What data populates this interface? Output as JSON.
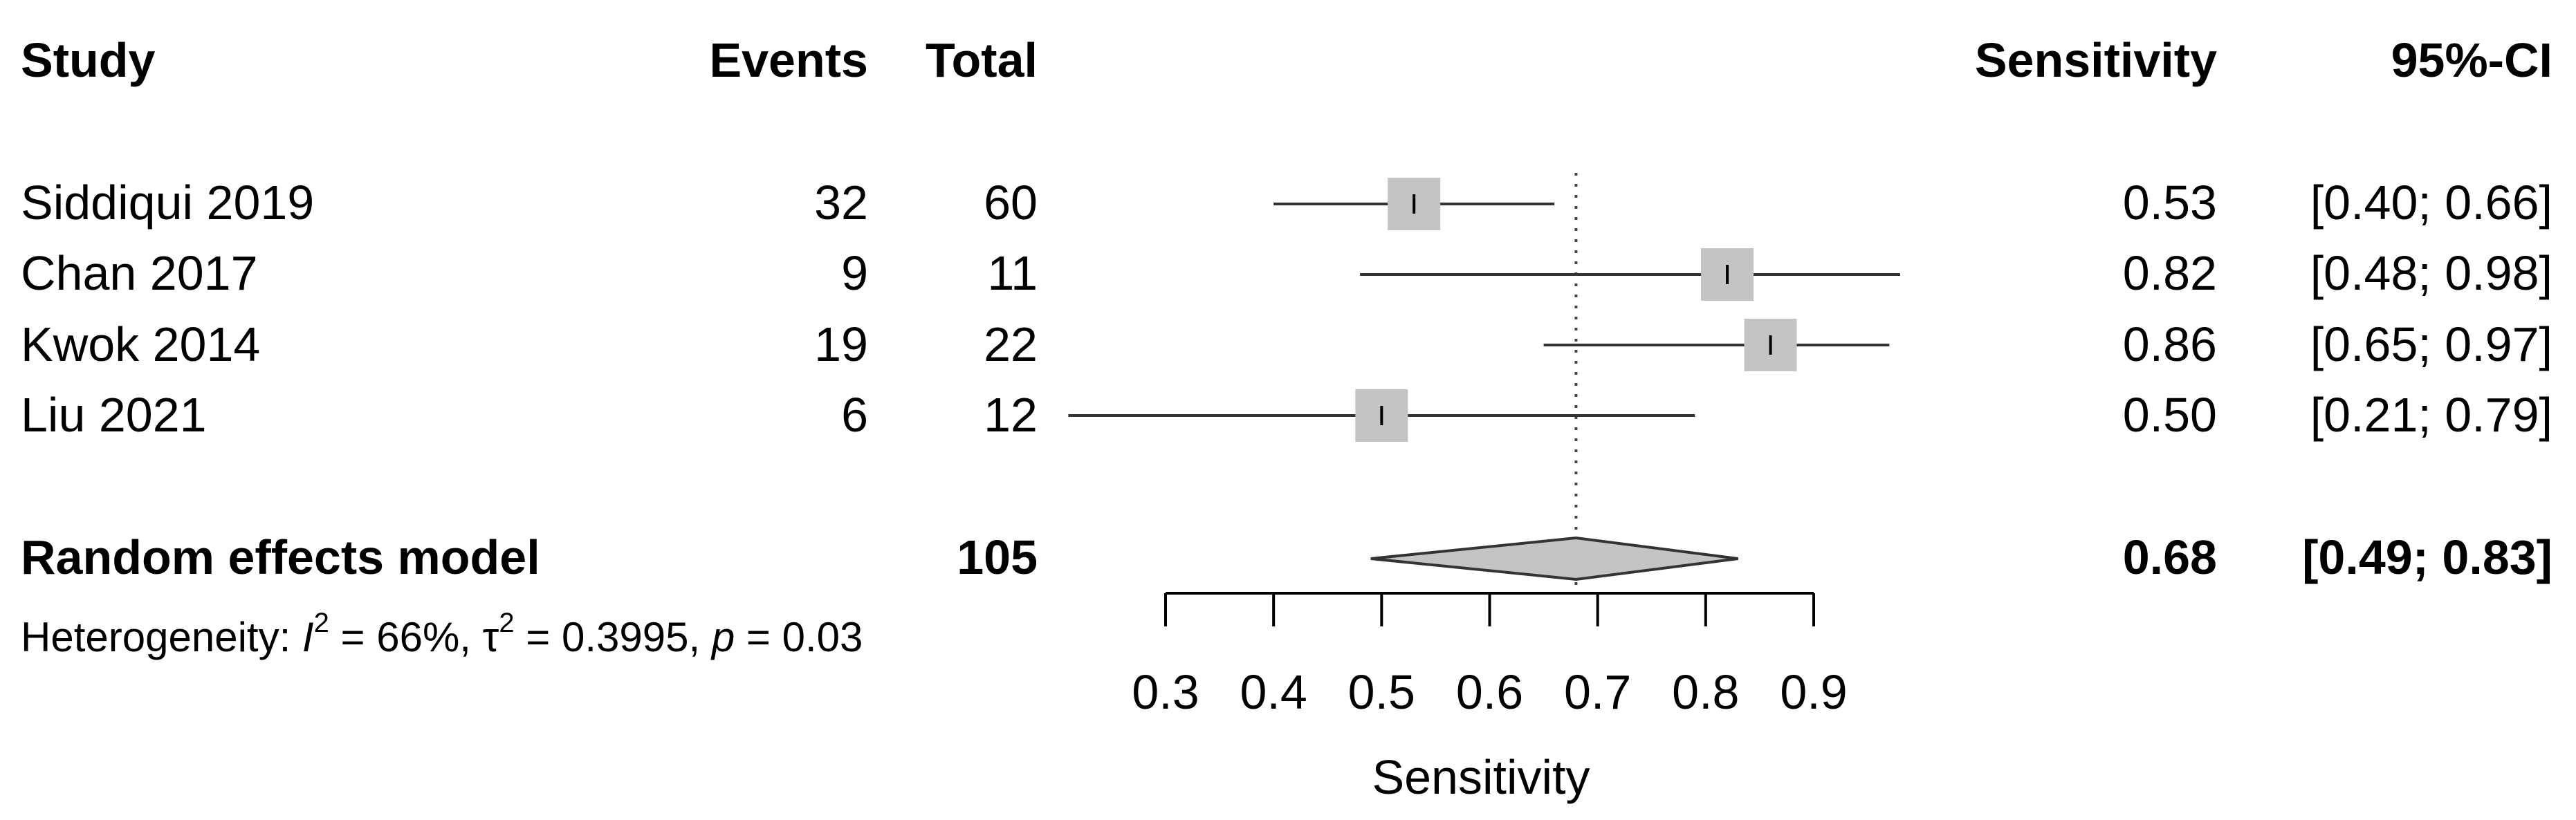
{
  "headers": {
    "study": "Study",
    "events": "Events",
    "total": "Total",
    "estimate": "Sensitivity",
    "ci": "95%-CI"
  },
  "chart_data": {
    "type": "forest",
    "xlabel": "Sensitivity",
    "xlim": [
      0.3,
      0.9
    ],
    "xticks": [
      0.3,
      0.4,
      0.5,
      0.6,
      0.7,
      0.8,
      0.9
    ],
    "xtick_labels": [
      "0.3",
      "0.4",
      "0.5",
      "0.6",
      "0.7",
      "0.8",
      "0.9"
    ],
    "reference_line": 0.68,
    "studies": [
      {
        "study": "Siddiqui 2019",
        "events": "32",
        "total": "60",
        "estimate": 0.53,
        "lower": 0.4,
        "upper": 0.66,
        "estimate_label": "0.53",
        "ci_label": "[0.40; 0.66]"
      },
      {
        "study": "Chan 2017",
        "events": "9",
        "total": "11",
        "estimate": 0.82,
        "lower": 0.48,
        "upper": 0.98,
        "estimate_label": "0.82",
        "ci_label": "[0.48; 0.98]"
      },
      {
        "study": "Kwok 2014",
        "events": "19",
        "total": "22",
        "estimate": 0.86,
        "lower": 0.65,
        "upper": 0.97,
        "estimate_label": "0.86",
        "ci_label": "[0.65; 0.97]"
      },
      {
        "study": "Liu 2021",
        "events": "6",
        "total": "12",
        "estimate": 0.5,
        "lower": 0.21,
        "upper": 0.79,
        "estimate_label": "0.50",
        "ci_label": "[0.21; 0.79]"
      }
    ],
    "pooled": {
      "label": "Random effects model",
      "total": "105",
      "estimate": 0.68,
      "lower": 0.49,
      "upper": 0.83,
      "estimate_label": "0.68",
      "ci_label": "[0.49; 0.83]"
    },
    "heterogeneity": {
      "prefix": "Heterogeneity: ",
      "i2_symbol": "I",
      "i2_text": " = 66%, ",
      "tau2_symbol": "τ",
      "tau2_text": " = 0.3995, ",
      "p_symbol": "p",
      "p_text": " = 0.03",
      "superscript": "2"
    }
  }
}
